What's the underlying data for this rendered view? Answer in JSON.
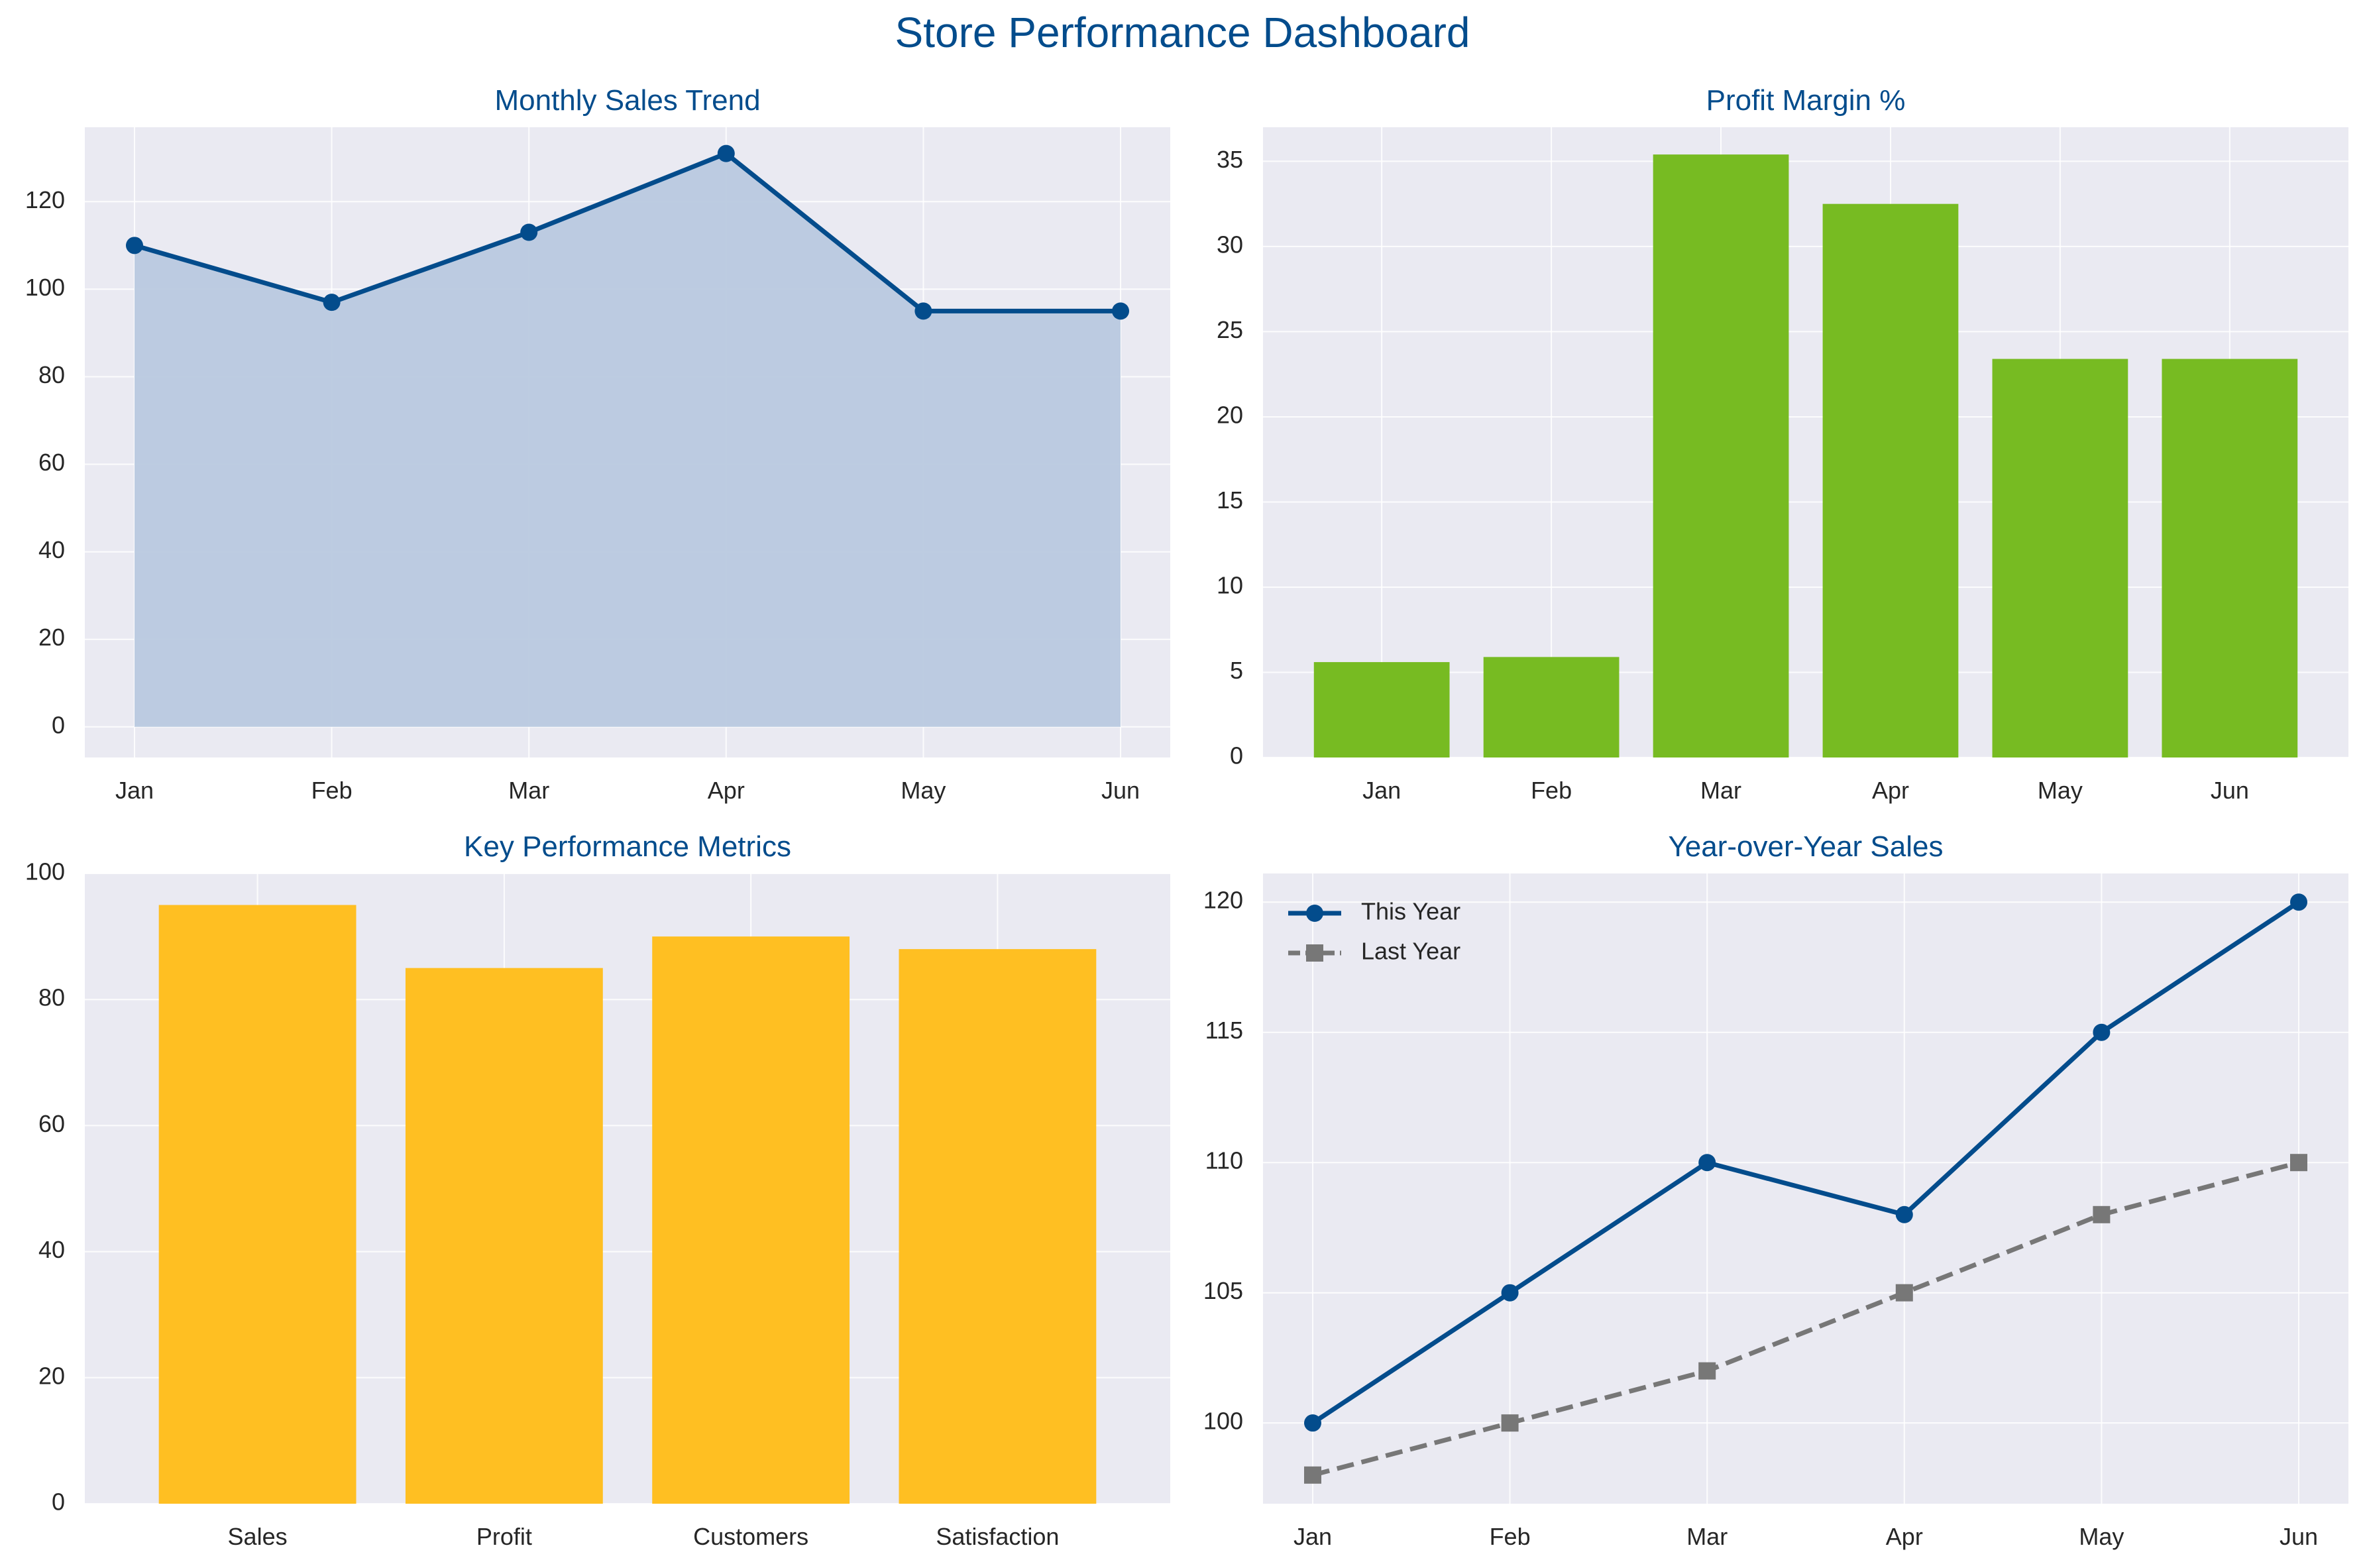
{
  "dashboard": {
    "title": "Store Performance Dashboard"
  },
  "colors": {
    "accent": "#034c8c",
    "panel_bg": "#eaeaf2",
    "grid": "#ffffff",
    "area_fill": "#b9c9df",
    "profit_bar": "#77bb22",
    "kpi_bar": "#ffbf22",
    "last_year": "#777777",
    "tick_text": "#262626"
  },
  "chart_data": [
    {
      "id": "sales",
      "type": "area",
      "title": "Monthly Sales Trend",
      "categories": [
        "Jan",
        "Feb",
        "Mar",
        "Apr",
        "May",
        "Jun"
      ],
      "values": [
        110,
        97,
        113,
        131,
        95,
        95
      ],
      "ylim": [
        -7,
        137
      ],
      "yticks": [
        0,
        20,
        40,
        60,
        80,
        100,
        120
      ],
      "grid": true,
      "xlabel": "",
      "ylabel": ""
    },
    {
      "id": "profit",
      "type": "bar",
      "title": "Profit Margin %",
      "categories": [
        "Jan",
        "Feb",
        "Mar",
        "Apr",
        "May",
        "Jun"
      ],
      "values": [
        5.6,
        5.9,
        35.4,
        32.5,
        23.4,
        23.4
      ],
      "ylim": [
        0,
        37
      ],
      "yticks": [
        0,
        5,
        10,
        15,
        20,
        25,
        30,
        35
      ],
      "grid": true,
      "xlabel": "",
      "ylabel": ""
    },
    {
      "id": "kpi",
      "type": "bar",
      "title": "Key Performance Metrics",
      "categories": [
        "Sales",
        "Profit",
        "Customers",
        "Satisfaction"
      ],
      "values": [
        95,
        85,
        90,
        88
      ],
      "ylim": [
        0,
        100
      ],
      "yticks": [
        0,
        20,
        40,
        60,
        80,
        100
      ],
      "grid": true,
      "xlabel": "",
      "ylabel": ""
    },
    {
      "id": "yoy",
      "type": "line",
      "title": "Year-over-Year Sales",
      "categories": [
        "Jan",
        "Feb",
        "Mar",
        "Apr",
        "May",
        "Jun"
      ],
      "series": [
        {
          "name": "This Year",
          "values": [
            100,
            105,
            110,
            108,
            115,
            120
          ],
          "marker": "circle",
          "style": "solid"
        },
        {
          "name": "Last Year",
          "values": [
            98,
            100,
            102,
            105,
            108,
            110
          ],
          "marker": "square",
          "style": "dashed"
        }
      ],
      "ylim": [
        96.9,
        121.1
      ],
      "yticks": [
        100,
        105,
        110,
        115,
        120
      ],
      "legend": "top-left",
      "grid": true,
      "xlabel": "",
      "ylabel": ""
    }
  ]
}
